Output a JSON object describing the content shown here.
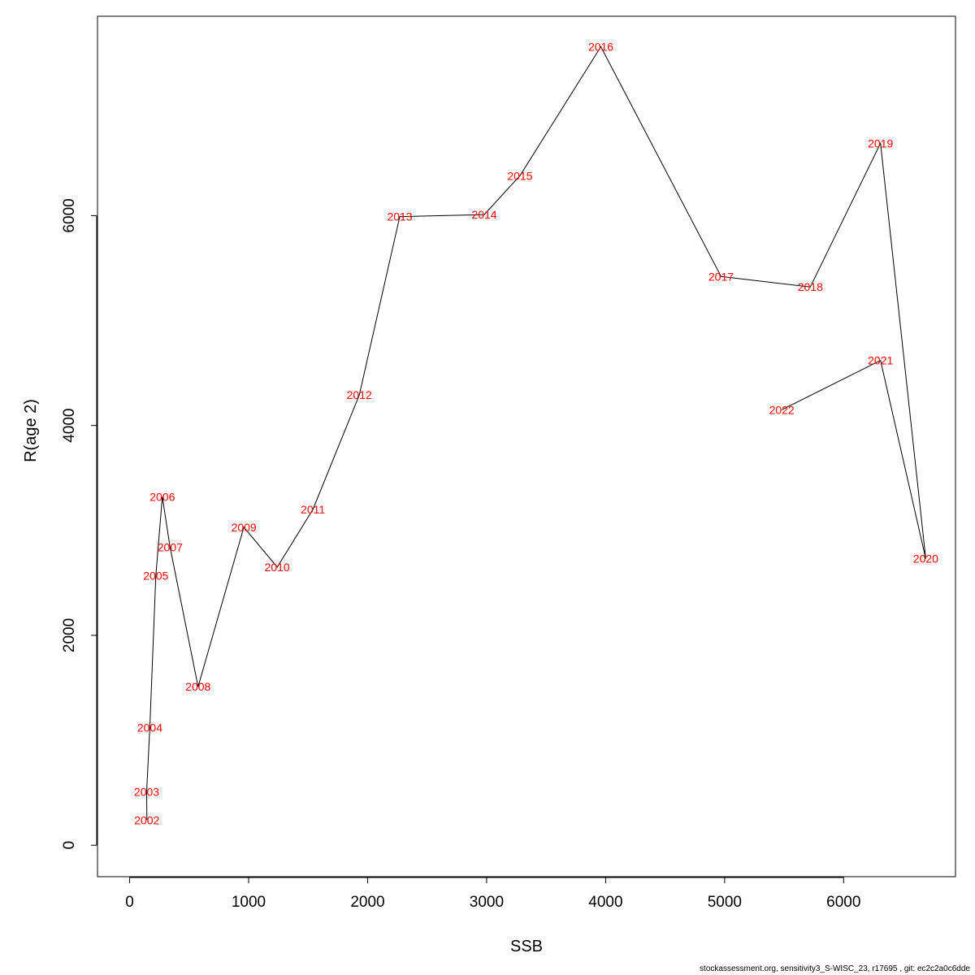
{
  "chart_data": {
    "type": "line",
    "xlabel": "SSB",
    "ylabel": "R(age 2)",
    "xlim": [
      -270,
      6940
    ],
    "ylim": [
      -300,
      7900
    ],
    "xticks": [
      0,
      1000,
      2000,
      3000,
      4000,
      5000,
      6000
    ],
    "yticks": [
      0,
      2000,
      4000,
      6000
    ],
    "grid": false,
    "line_color": "#000000",
    "label_color": "#ff0000",
    "points": [
      {
        "label": "2002",
        "x": 145,
        "y": 240
      },
      {
        "label": "2003",
        "x": 143,
        "y": 510
      },
      {
        "label": "2004",
        "x": 170,
        "y": 1120
      },
      {
        "label": "2005",
        "x": 220,
        "y": 2570
      },
      {
        "label": "2006",
        "x": 275,
        "y": 3320
      },
      {
        "label": "2007",
        "x": 340,
        "y": 2840
      },
      {
        "label": "2008",
        "x": 575,
        "y": 1510
      },
      {
        "label": "2009",
        "x": 960,
        "y": 3030
      },
      {
        "label": "2010",
        "x": 1240,
        "y": 2650
      },
      {
        "label": "2011",
        "x": 1540,
        "y": 3200
      },
      {
        "label": "2012",
        "x": 1930,
        "y": 4290
      },
      {
        "label": "2013",
        "x": 2270,
        "y": 5990
      },
      {
        "label": "2014",
        "x": 2980,
        "y": 6010
      },
      {
        "label": "2015",
        "x": 3280,
        "y": 6380
      },
      {
        "label": "2016",
        "x": 3960,
        "y": 7610
      },
      {
        "label": "2017",
        "x": 4970,
        "y": 5420
      },
      {
        "label": "2018",
        "x": 5720,
        "y": 5320
      },
      {
        "label": "2019",
        "x": 6310,
        "y": 6690
      },
      {
        "label": "2020",
        "x": 6690,
        "y": 2730
      },
      {
        "label": "2021",
        "x": 6310,
        "y": 4620
      },
      {
        "label": "2022",
        "x": 5480,
        "y": 4150
      }
    ]
  },
  "footer": {
    "text": "stockassessment.org, sensitivity3_S-WISC_23, r17695 , git: ec2c2a0c6dde"
  }
}
